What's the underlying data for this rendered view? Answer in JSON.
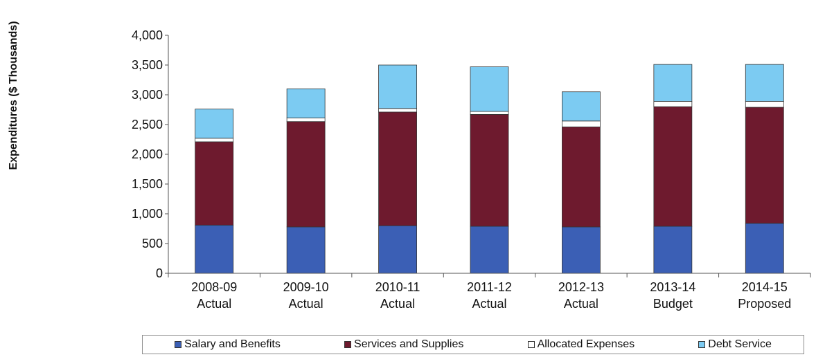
{
  "chart_data": {
    "type": "bar",
    "stacked": true,
    "ylabel": "Expenditures ($ Thousands)",
    "ylim": [
      0,
      4000
    ],
    "y_ticks": [
      "0",
      "500",
      "1,000",
      "1,500",
      "2,000",
      "2,500",
      "3,000",
      "3,500",
      "4,000"
    ],
    "y_tick_values": [
      0,
      500,
      1000,
      1500,
      2000,
      2500,
      3000,
      3500,
      4000
    ],
    "categories": [
      {
        "line1": "2008-09",
        "line2": "Actual"
      },
      {
        "line1": "2009-10",
        "line2": "Actual"
      },
      {
        "line1": "2010-11",
        "line2": "Actual"
      },
      {
        "line1": "2011-12",
        "line2": "Actual"
      },
      {
        "line1": "2012-13",
        "line2": "Actual"
      },
      {
        "line1": "2013-14",
        "line2": "Budget"
      },
      {
        "line1": "2014-15",
        "line2": "Proposed"
      }
    ],
    "series": [
      {
        "name": "Salary and Benefits",
        "color": "#3b5fb5",
        "values": [
          810,
          780,
          800,
          790,
          780,
          790,
          840
        ]
      },
      {
        "name": "Services and Supplies",
        "color": "#6e1a2e",
        "values": [
          1400,
          1770,
          1910,
          1880,
          1680,
          2010,
          1950
        ]
      },
      {
        "name": "Allocated Expenses",
        "color": "#ffffff",
        "values": [
          60,
          60,
          60,
          50,
          100,
          90,
          100
        ]
      },
      {
        "name": "Debt Service",
        "color": "#7ccbf2",
        "values": [
          490,
          490,
          730,
          750,
          490,
          620,
          620
        ]
      }
    ],
    "legend_position": "bottom",
    "grid": false
  }
}
